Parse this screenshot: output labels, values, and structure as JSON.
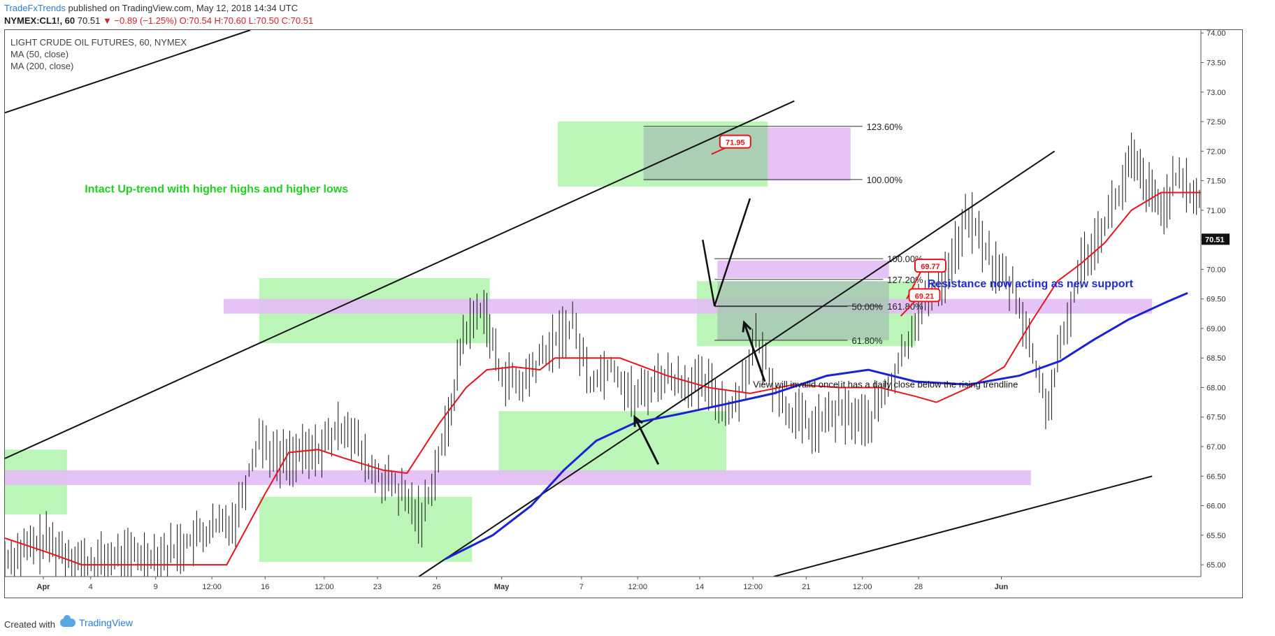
{
  "header": {
    "brand": "TradeFxTrends",
    "published": " published on TradingView.com, May 12, 2018 14:34 UTC",
    "symbol": "NYMEX:CL1!, 60",
    "last": "70.51",
    "change": "▼ −0.89 (−1.25%)",
    "ohlc": "O:70.54 H:70.60 L:70.50 C:70.51"
  },
  "legend": {
    "title": "LIGHT CRUDE OIL FUTURES, 60, NYMEX",
    "ma50": "MA (50, close)",
    "ma200": "MA (200, close)"
  },
  "footer": {
    "created_with": "Created with",
    "tradingview": "TradingView"
  },
  "colors": {
    "zone_green": "#b4f5b0",
    "zone_purple": "#e3bdf5",
    "zone_overlap": "#a8c8b4",
    "ma50": "#e8141c",
    "ma200": "#1a22d4",
    "annotation_green": "#22d022",
    "annotation_blue": "#1f2bd6",
    "callout_red": "#e8141c"
  },
  "chart_data": {
    "type": "candlestick",
    "x_ticks": [
      {
        "label": "Apr",
        "bold": true
      },
      {
        "label": "4"
      },
      {
        "label": "9"
      },
      {
        "label": "12:00"
      },
      {
        "label": "16"
      },
      {
        "label": "12:00"
      },
      {
        "label": "23"
      },
      {
        "label": "26"
      },
      {
        "label": "May",
        "bold": true
      },
      {
        "label": "7"
      },
      {
        "label": "12:00"
      },
      {
        "label": "14"
      },
      {
        "label": "12:00"
      },
      {
        "label": "21"
      },
      {
        "label": "12:00"
      },
      {
        "label": "28"
      },
      {
        "label": "Jun",
        "bold": true
      }
    ],
    "y_ticks": [
      "74.00",
      "73.50",
      "73.00",
      "72.50",
      "72.00",
      "71.50",
      "71.00",
      "70.50",
      "70.00",
      "69.50",
      "69.00",
      "68.50",
      "68.00",
      "67.50",
      "67.00",
      "66.50",
      "66.00",
      "65.50",
      "65.00"
    ],
    "ylim": [
      64.8,
      74.05
    ],
    "last_price": "70.51",
    "price_path": [
      [
        0,
        65.1
      ],
      [
        1.4,
        65.4
      ],
      [
        2.8,
        65.0
      ],
      [
        3.6,
        65.1
      ],
      [
        5.5,
        65.2
      ],
      [
        7.8,
        65.8
      ],
      [
        8.6,
        67.2
      ],
      [
        9.2,
        66.8
      ],
      [
        10.5,
        66.9
      ],
      [
        11.6,
        67.4
      ],
      [
        12.3,
        66.6
      ],
      [
        13.2,
        66.3
      ],
      [
        14.1,
        65.8
      ],
      [
        15,
        67.4
      ],
      [
        15.5,
        68.9
      ],
      [
        16.2,
        69.4
      ],
      [
        16.7,
        68.3
      ],
      [
        17.4,
        68.0
      ],
      [
        18.3,
        68.6
      ],
      [
        19.2,
        69.1
      ],
      [
        19.8,
        68.1
      ],
      [
        20.5,
        68.4
      ],
      [
        21.3,
        67.8
      ],
      [
        22.2,
        68.2
      ],
      [
        23,
        68.1
      ],
      [
        23.8,
        68.0
      ],
      [
        24.6,
        67.6
      ],
      [
        25.4,
        68.8
      ],
      [
        26.3,
        67.7
      ],
      [
        27.3,
        67.3
      ],
      [
        28.2,
        67.6
      ],
      [
        29.2,
        67.4
      ],
      [
        30.1,
        68.2
      ],
      [
        30.9,
        69.3
      ],
      [
        31.8,
        69.9
      ],
      [
        32.6,
        70.9
      ],
      [
        33.4,
        70.1
      ],
      [
        34.2,
        69.6
      ],
      [
        35.1,
        67.9
      ],
      [
        35.3,
        67.7
      ],
      [
        35.7,
        68.6
      ],
      [
        36.4,
        70.1
      ],
      [
        37.2,
        70.8
      ],
      [
        37.8,
        71.4
      ],
      [
        38.1,
        71.85
      ],
      [
        38.6,
        71.4
      ],
      [
        39.1,
        71.0
      ],
      [
        39.6,
        71.5
      ],
      [
        40.2,
        71.3
      ],
      [
        40.7,
        70.9
      ],
      [
        41,
        70.51
      ]
    ],
    "ma50": [
      [
        0,
        65.45
      ],
      [
        1.5,
        65.2
      ],
      [
        2.6,
        65.0
      ],
      [
        7.5,
        65.0
      ],
      [
        8.8,
        66.2
      ],
      [
        9.6,
        66.9
      ],
      [
        10.6,
        66.95
      ],
      [
        11.5,
        66.8
      ],
      [
        12.8,
        66.6
      ],
      [
        13.6,
        66.55
      ],
      [
        14.7,
        67.4
      ],
      [
        15.6,
        68.0
      ],
      [
        16.3,
        68.3
      ],
      [
        17.2,
        68.35
      ],
      [
        18.1,
        68.3
      ],
      [
        18.6,
        68.5
      ],
      [
        19.8,
        68.5
      ],
      [
        20.8,
        68.5
      ],
      [
        22.4,
        68.2
      ],
      [
        23.8,
        68.0
      ],
      [
        25.2,
        67.9
      ],
      [
        26.7,
        68.05
      ],
      [
        28.2,
        68.0
      ],
      [
        29.6,
        68.0
      ],
      [
        30.8,
        67.85
      ],
      [
        31.5,
        67.75
      ],
      [
        32.6,
        68.0
      ],
      [
        33.8,
        68.35
      ],
      [
        34.7,
        69.1
      ],
      [
        35.6,
        69.8
      ],
      [
        36.4,
        70.1
      ],
      [
        37.2,
        70.45
      ],
      [
        38.1,
        71.0
      ],
      [
        39.1,
        71.3
      ],
      [
        40.2,
        71.3
      ],
      [
        40.8,
        71.3
      ]
    ],
    "ma200": [
      [
        14.9,
        65.1
      ],
      [
        16.5,
        65.5
      ],
      [
        17.8,
        66.0
      ],
      [
        18.9,
        66.6
      ],
      [
        20,
        67.1
      ],
      [
        21.3,
        67.4
      ],
      [
        22.8,
        67.55
      ],
      [
        24.2,
        67.7
      ],
      [
        26,
        67.9
      ],
      [
        27.8,
        68.2
      ],
      [
        29.2,
        68.3
      ],
      [
        30.8,
        68.1
      ],
      [
        32.6,
        68.05
      ],
      [
        34.3,
        68.2
      ],
      [
        35.7,
        68.45
      ],
      [
        36.8,
        68.8
      ],
      [
        38,
        69.15
      ],
      [
        39.3,
        69.45
      ],
      [
        40,
        69.6
      ]
    ],
    "zones": [
      {
        "type": "green",
        "x": [
          0,
          2.1
        ],
        "y": [
          65.85,
          66.95
        ]
      },
      {
        "type": "green",
        "x": [
          8.6,
          15.8
        ],
        "y": [
          65.05,
          66.15
        ]
      },
      {
        "type": "green",
        "x": [
          8.6,
          16.4
        ],
        "y": [
          68.75,
          69.85
        ]
      },
      {
        "type": "green",
        "x": [
          16.7,
          24.4
        ],
        "y": [
          66.5,
          67.6
        ]
      },
      {
        "type": "green",
        "x": [
          18.7,
          25.8
        ],
        "y": [
          71.4,
          72.5
        ]
      },
      {
        "type": "green",
        "x": [
          23.4,
          30.8
        ],
        "y": [
          68.7,
          69.8
        ]
      },
      {
        "type": "purple",
        "x": [
          7.4,
          38.8
        ],
        "y": [
          69.25,
          69.5
        ]
      },
      {
        "type": "purple",
        "x": [
          0,
          34.7
        ],
        "y": [
          66.35,
          66.6
        ]
      },
      {
        "type": "purple",
        "x": [
          25.8,
          28.6
        ],
        "y": [
          71.5,
          72.4
        ]
      },
      {
        "type": "purple",
        "x": [
          24.1,
          29.9
        ],
        "y": [
          69.85,
          70.15
        ]
      },
      {
        "type": "overlap",
        "x": [
          21.6,
          25.8
        ],
        "y": [
          71.5,
          72.4
        ]
      },
      {
        "type": "overlap",
        "x": [
          24.1,
          29.9
        ],
        "y": [
          68.8,
          69.8
        ]
      }
    ],
    "fib_levels": [
      {
        "label": "123.60%",
        "x": [
          21.6,
          29
        ],
        "y": 72.42
      },
      {
        "label": "100.00%",
        "x": [
          21.6,
          29
        ],
        "y": 71.52
      },
      {
        "label": "100.00%",
        "x": [
          24,
          29.7
        ],
        "y": 70.18
      },
      {
        "label": "127.20%",
        "x": [
          24,
          29.7
        ],
        "y": 69.83
      },
      {
        "label": "161.80%",
        "x": [
          24,
          29.7
        ],
        "y": 69.38
      },
      {
        "label": "50.00%",
        "x": [
          24,
          28.5
        ],
        "y": 69.37
      },
      {
        "label": "61.80%",
        "x": [
          24,
          28.5
        ],
        "y": 68.8
      }
    ],
    "trendlines": [
      {
        "x": [
          0,
          8.3
        ],
        "y": [
          72.65,
          74.05
        ]
      },
      {
        "x": [
          0,
          26.7
        ],
        "y": [
          66.8,
          72.85
        ]
      },
      {
        "x": [
          14,
          35.5
        ],
        "y": [
          64.8,
          72.0
        ]
      },
      {
        "x": [
          26,
          38.8
        ],
        "y": [
          64.8,
          66.5
        ]
      }
    ],
    "callouts": [
      {
        "label": "71.95",
        "x": 24.7,
        "y": 72.15,
        "anchor_x": 23.9,
        "anchor_y": 71.95
      },
      {
        "label": "69.77",
        "x": 31.3,
        "y": 70.05,
        "anchor_x": 30.5,
        "anchor_y": 69.5
      },
      {
        "label": "69.21",
        "x": 31.1,
        "y": 69.55,
        "anchor_x": 30.3,
        "anchor_y": 69.21
      }
    ],
    "annotations": [
      {
        "text": "Intact Up-trend with higher highs and higher lows",
        "x": 2.7,
        "y": 71.3,
        "color": "green"
      },
      {
        "text": "Resistance now acting as new support",
        "x": 31.2,
        "y": 69.7,
        "color": "blue"
      },
      {
        "text": "View will invalid once it has a daily close below the rising trendline",
        "x": 25.3,
        "y": 68.0,
        "color": "black"
      }
    ]
  }
}
